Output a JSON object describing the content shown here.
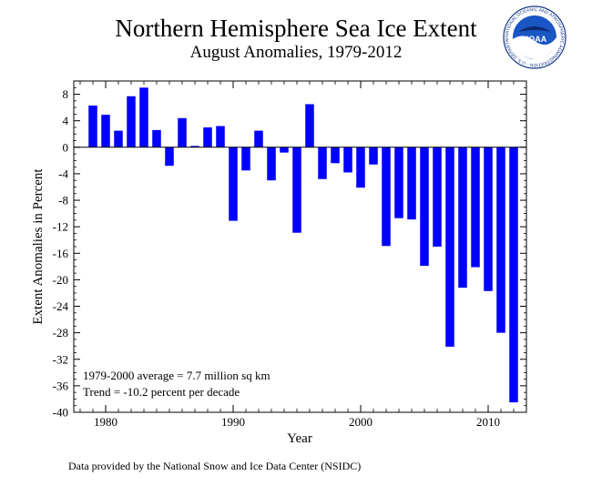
{
  "chart_data": {
    "type": "bar",
    "title": "Northern Hemisphere Sea Ice Extent",
    "subtitle": "August Anomalies, 1979-2012",
    "xlabel": "Year",
    "ylabel": "Extent Anomalies in Percent",
    "xlim": [
      1977.5,
      2013
    ],
    "ylim": [
      -40,
      10
    ],
    "yticks": [
      8,
      4,
      0,
      -4,
      -8,
      -12,
      -16,
      -20,
      -24,
      -28,
      -32,
      -36,
      -40
    ],
    "xticks": [
      1980,
      1990,
      2000,
      2010
    ],
    "bar_color": "#0000ff",
    "x": [
      1979,
      1980,
      1981,
      1982,
      1983,
      1984,
      1985,
      1986,
      1987,
      1988,
      1989,
      1990,
      1991,
      1992,
      1993,
      1994,
      1995,
      1996,
      1997,
      1998,
      1999,
      2000,
      2001,
      2002,
      2003,
      2004,
      2005,
      2006,
      2007,
      2008,
      2009,
      2010,
      2011,
      2012
    ],
    "values": [
      6.3,
      4.9,
      2.5,
      7.7,
      9.0,
      2.6,
      -2.8,
      4.4,
      0.2,
      3.0,
      3.2,
      -11.1,
      -3.5,
      2.5,
      -5.0,
      -0.8,
      -12.9,
      6.5,
      -4.8,
      -2.4,
      -3.8,
      -6.1,
      -2.6,
      -14.9,
      -10.7,
      -10.9,
      -17.9,
      -15.0,
      -30.1,
      -21.2,
      -18.1,
      -21.7,
      -28.0,
      -38.5
    ],
    "annotations": [
      "1979-2000 average =  7.7 million sq km",
      "Trend = -10.2 percent per decade"
    ]
  },
  "credit": "Data provided by the National Snow and Ice Data Center (NSIDC)",
  "logo": {
    "text": "NOAA",
    "ring_text": "NATIONAL OCEANIC AND ATMOSPHERIC ADMINISTRATION · U.S. DEPARTMENT OF COMMERCE"
  }
}
